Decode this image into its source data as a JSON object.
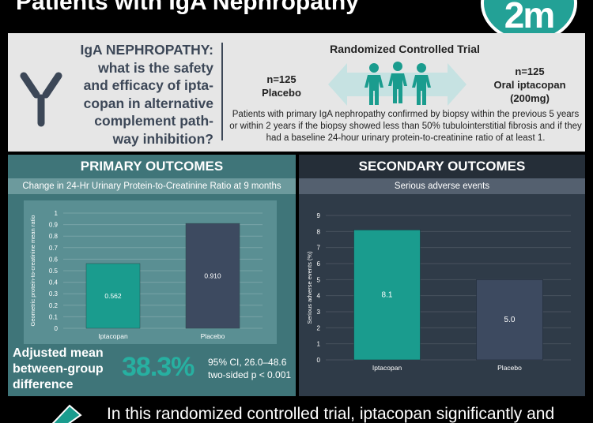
{
  "header": {
    "title": "Patients with IgA Nephropathy",
    "logo_text": "2m"
  },
  "trial": {
    "question": [
      "IgA NEPHROPATHY:",
      "what is the safety",
      "and efficacy of ipta-",
      "copan in alternative",
      "complement path-",
      "way inhibition?"
    ],
    "rct_title": "Randomized Controlled Trial",
    "placebo_n": "n=125",
    "placebo_label": "Placebo",
    "ipta_n": "n=125",
    "ipta_label": "Oral iptacopan",
    "ipta_dose": "(200mg)",
    "criteria": "Patients with primary IgA nephropathy confirmed by biopsy within the previous 5 years or within 2 years if the biopsy showed less than 50% tubulointerstitial fibrosis and if they had a baseline 24-hour urinary protein-to-creatinine ratio of at least 1."
  },
  "primary": {
    "heading": "PRIMARY OUTCOMES",
    "subheading": "Change in 24-Hr Urinary Protein-to-Creatinine Ratio at 9 months",
    "adjusted_label": "Adjusted mean between-group difference",
    "percent": "38.3%",
    "ci": "95% CI, 26.0–48.6",
    "pvalue": "two-sided p < 0.001"
  },
  "secondary": {
    "heading": "SECONDARY OUTCOMES",
    "subheading": "Serious adverse events"
  },
  "chart_data": [
    {
      "type": "bar",
      "title": "Change in 24-Hr Urinary Protein-to-Creatinine Ratio at 9 months",
      "ylabel": "Geometric protein-to-creatinine mean ratio",
      "categories": [
        "Iptacopan",
        "Placebo"
      ],
      "values": [
        0.562,
        0.91
      ],
      "value_labels": [
        "0.562",
        "0.910"
      ],
      "ylim": [
        0,
        1
      ],
      "yticks": [
        "0",
        "0.1",
        "0.2",
        "0.3",
        "0.4",
        "0.5",
        "0.6",
        "0.7",
        "0.8",
        "0.9",
        "1"
      ],
      "colors": [
        "#1a9c8e",
        "#3d4a60"
      ],
      "grid": true
    },
    {
      "type": "bar",
      "title": "Serious adverse events",
      "ylabel": "Serious adverse events (%)",
      "categories": [
        "Iptacopan",
        "Placebo"
      ],
      "values": [
        8.1,
        5.0
      ],
      "value_labels": [
        "8.1",
        "5.0"
      ],
      "ylim": [
        0,
        9
      ],
      "yticks": [
        "0",
        "1",
        "2",
        "3",
        "4",
        "5",
        "6",
        "7",
        "8",
        "9"
      ],
      "colors": [
        "#1a9c8e",
        "#3d4a60"
      ],
      "grid": true
    }
  ],
  "bottom": {
    "conclusion": "In this randomized controlled trial, iptacopan significantly and"
  }
}
